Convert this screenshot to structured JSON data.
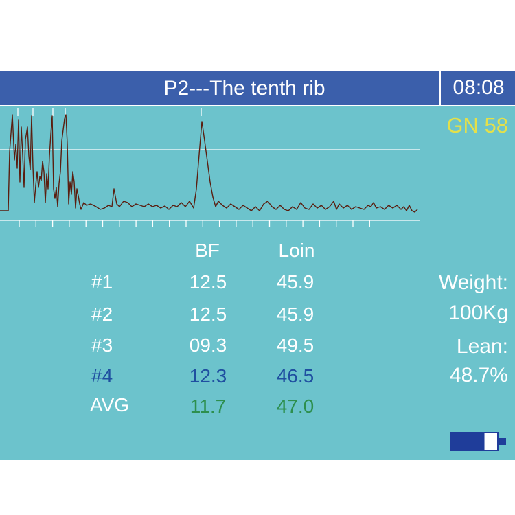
{
  "header": {
    "title": "P2---The tenth rib",
    "clock": "08:08"
  },
  "gain": "GN 58",
  "table": {
    "headers": {
      "bf": "BF",
      "loin": "Loin"
    },
    "rows": [
      {
        "label": "#1",
        "bf": "12.5",
        "loin": "45.9"
      },
      {
        "label": "#2",
        "bf": "12.5",
        "loin": "45.9"
      },
      {
        "label": "#3",
        "bf": "09.3",
        "loin": "49.5"
      },
      {
        "label": "#4",
        "bf": "12.3",
        "loin": "46.5"
      }
    ],
    "avg": {
      "label": "AVG",
      "bf": "11.7",
      "loin": "47.0"
    }
  },
  "info": {
    "weight_label": "Weight:",
    "weight_value": "100Kg",
    "lean_label": "Lean:",
    "lean_value": "48.7%"
  },
  "battery": {
    "level": 0.72
  },
  "colors": {
    "screen": "#6cc3cc",
    "titlebar": "#3b5fab",
    "gain": "#e4e04a",
    "highlight_blue": "#1f4fa0",
    "avg_green": "#2d8f4e",
    "signal": "#5a1e10"
  }
}
